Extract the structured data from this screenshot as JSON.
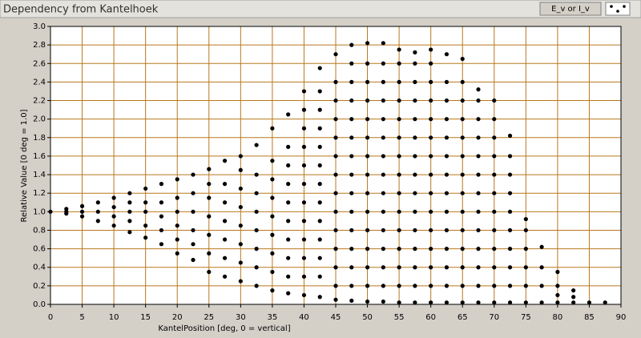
{
  "chart_data": {
    "type": "scatter",
    "title": "Dependency from Kantelhoek",
    "x_label": "KantelPosition [deg, 0 = vertical]",
    "y_label": "Relative Value [0 deg = 1.0]",
    "xlim": [
      0,
      90
    ],
    "ylim": [
      0,
      3
    ],
    "xticks": [
      0,
      5,
      10,
      15,
      20,
      25,
      30,
      35,
      40,
      45,
      50,
      55,
      60,
      65,
      70,
      75,
      80,
      85,
      90
    ],
    "yticks": [
      {
        "value": 0,
        "label": "0.0"
      },
      0.2,
      0.4,
      0.6,
      0.8,
      {
        "value": 1,
        "label": "1.0"
      },
      1.2,
      1.4,
      1.6,
      1.8,
      {
        "value": 2,
        "label": "2.0"
      },
      2.2,
      2.4,
      2.6,
      2.8,
      {
        "value": 3,
        "label": "3.0"
      }
    ],
    "grid": true,
    "grid_color": "#b8781c",
    "legend": "top-right",
    "x": [
      0,
      2.5,
      2.5,
      2.5,
      5,
      5,
      5,
      7.5,
      7.5,
      7.5,
      10,
      10,
      10,
      10,
      12.5,
      12.5,
      12.5,
      12.5,
      12.5,
      15,
      15,
      15,
      15,
      15,
      17.5,
      17.5,
      17.5,
      17.5,
      17.5,
      20,
      20,
      20,
      20,
      20,
      20,
      22.5,
      22.5,
      22.5,
      22.5,
      22.5,
      22.5,
      25,
      25,
      25,
      25,
      25,
      25,
      25,
      27.5,
      27.5,
      27.5,
      27.5,
      27.5,
      27.5,
      27.5,
      30,
      30,
      30,
      30,
      30,
      30,
      30,
      30,
      32.5,
      32.5,
      32.5,
      32.5,
      32.5,
      32.5,
      32.5,
      32.5,
      35,
      35,
      35,
      35,
      35,
      35,
      35,
      35,
      35,
      37.5,
      37.5,
      37.5,
      37.5,
      37.5,
      37.5,
      37.5,
      37.5,
      37.5,
      37.5,
      40,
      40,
      40,
      40,
      40,
      40,
      40,
      40,
      40,
      40,
      40,
      40,
      42.5,
      42.5,
      42.5,
      42.5,
      42.5,
      42.5,
      42.5,
      42.5,
      42.5,
      42.5,
      42.5,
      42.5,
      42.5,
      45,
      45,
      45,
      45,
      45,
      45,
      45,
      45,
      45,
      45,
      45,
      45,
      45,
      45,
      47.5,
      47.5,
      47.5,
      47.5,
      47.5,
      47.5,
      47.5,
      47.5,
      47.5,
      47.5,
      47.5,
      47.5,
      47.5,
      47.5,
      47.5,
      50,
      50,
      50,
      50,
      50,
      50,
      50,
      50,
      50,
      50,
      50,
      50,
      50,
      50,
      50,
      52.5,
      52.5,
      52.5,
      52.5,
      52.5,
      52.5,
      52.5,
      52.5,
      52.5,
      52.5,
      52.5,
      52.5,
      52.5,
      52.5,
      52.5,
      55,
      55,
      55,
      55,
      55,
      55,
      55,
      55,
      55,
      55,
      55,
      55,
      55,
      55,
      55,
      57.5,
      57.5,
      57.5,
      57.5,
      57.5,
      57.5,
      57.5,
      57.5,
      57.5,
      57.5,
      57.5,
      57.5,
      57.5,
      57.5,
      57.5,
      60,
      60,
      60,
      60,
      60,
      60,
      60,
      60,
      60,
      60,
      60,
      60,
      60,
      60,
      60,
      62.5,
      62.5,
      62.5,
      62.5,
      62.5,
      62.5,
      62.5,
      62.5,
      62.5,
      62.5,
      62.5,
      62.5,
      62.5,
      62.5,
      65,
      65,
      65,
      65,
      65,
      65,
      65,
      65,
      65,
      65,
      65,
      65,
      65,
      65,
      67.5,
      67.5,
      67.5,
      67.5,
      67.5,
      67.5,
      67.5,
      67.5,
      67.5,
      67.5,
      67.5,
      67.5,
      67.5,
      70,
      70,
      70,
      70,
      70,
      70,
      70,
      70,
      70,
      70,
      70,
      70,
      72.5,
      72.5,
      72.5,
      72.5,
      72.5,
      72.5,
      72.5,
      72.5,
      72.5,
      72.5,
      75,
      75,
      75,
      75,
      75,
      75,
      77.5,
      77.5,
      77.5,
      77.5,
      80,
      80,
      80,
      80,
      82.5,
      82.5,
      82.5,
      85,
      87.5
    ],
    "series": [
      {
        "name": "E_v or I_v",
        "color": "#000000",
        "values": [
          1.0,
          0.98,
          1.0,
          1.03,
          0.95,
          1.0,
          1.06,
          0.9,
          1.0,
          1.1,
          0.85,
          0.95,
          1.05,
          1.15,
          0.78,
          0.9,
          1.0,
          1.1,
          1.2,
          0.72,
          0.85,
          1.0,
          1.1,
          1.25,
          0.65,
          0.8,
          0.95,
          1.1,
          1.3,
          0.55,
          0.7,
          0.85,
          1.0,
          1.15,
          1.35,
          0.48,
          0.65,
          0.8,
          1.0,
          1.2,
          1.4,
          0.35,
          0.55,
          0.75,
          0.95,
          1.15,
          1.3,
          1.46,
          0.3,
          0.5,
          0.7,
          0.9,
          1.1,
          1.3,
          1.55,
          0.25,
          0.45,
          0.65,
          0.85,
          1.05,
          1.25,
          1.45,
          1.6,
          0.2,
          0.4,
          0.6,
          0.8,
          1.0,
          1.2,
          1.4,
          1.72,
          0.15,
          0.35,
          0.55,
          0.75,
          0.95,
          1.15,
          1.35,
          1.55,
          1.9,
          0.12,
          0.3,
          0.5,
          0.7,
          0.9,
          1.1,
          1.3,
          1.5,
          1.7,
          2.05,
          0.1,
          0.3,
          0.5,
          0.7,
          0.9,
          1.1,
          1.3,
          1.5,
          1.7,
          1.9,
          2.1,
          2.3,
          0.08,
          0.3,
          0.5,
          0.7,
          0.9,
          1.1,
          1.3,
          1.5,
          1.7,
          1.9,
          2.1,
          2.3,
          2.55,
          0.05,
          0.2,
          0.4,
          0.6,
          0.8,
          1.0,
          1.2,
          1.4,
          1.6,
          1.8,
          2.0,
          2.2,
          2.4,
          2.7,
          0.04,
          0.2,
          0.4,
          0.6,
          0.8,
          1.0,
          1.2,
          1.4,
          1.6,
          1.8,
          2.0,
          2.2,
          2.4,
          2.6,
          2.8,
          0.03,
          0.2,
          0.4,
          0.6,
          0.8,
          1.0,
          1.2,
          1.4,
          1.6,
          1.8,
          2.0,
          2.2,
          2.4,
          2.6,
          2.82,
          0.03,
          0.2,
          0.4,
          0.6,
          0.8,
          1.0,
          1.2,
          1.4,
          1.6,
          1.8,
          2.0,
          2.2,
          2.4,
          2.6,
          2.82,
          0.02,
          0.2,
          0.4,
          0.6,
          0.8,
          1.0,
          1.2,
          1.4,
          1.6,
          1.8,
          2.0,
          2.2,
          2.4,
          2.6,
          2.75,
          0.02,
          0.2,
          0.4,
          0.6,
          0.8,
          1.0,
          1.2,
          1.4,
          1.6,
          1.8,
          2.0,
          2.2,
          2.4,
          2.6,
          2.72,
          0.02,
          0.2,
          0.4,
          0.6,
          0.8,
          1.0,
          1.2,
          1.4,
          1.6,
          1.8,
          2.0,
          2.2,
          2.4,
          2.6,
          2.75,
          0.02,
          0.2,
          0.4,
          0.6,
          0.8,
          1.0,
          1.2,
          1.4,
          1.6,
          1.8,
          2.0,
          2.2,
          2.4,
          2.7,
          0.02,
          0.2,
          0.4,
          0.6,
          0.8,
          1.0,
          1.2,
          1.4,
          1.6,
          1.8,
          2.0,
          2.2,
          2.4,
          2.65,
          0.02,
          0.2,
          0.4,
          0.6,
          0.8,
          1.0,
          1.2,
          1.4,
          1.6,
          1.8,
          2.0,
          2.2,
          2.32,
          0.02,
          0.2,
          0.4,
          0.6,
          0.8,
          1.0,
          1.2,
          1.4,
          1.6,
          1.8,
          2.0,
          2.2,
          0.02,
          0.2,
          0.4,
          0.6,
          0.8,
          1.0,
          1.2,
          1.4,
          1.6,
          1.82,
          0.02,
          0.2,
          0.4,
          0.6,
          0.8,
          0.92,
          0.02,
          0.2,
          0.4,
          0.62,
          0.02,
          0.1,
          0.2,
          0.35,
          0.02,
          0.08,
          0.15,
          0.02,
          0.02
        ]
      }
    ]
  }
}
